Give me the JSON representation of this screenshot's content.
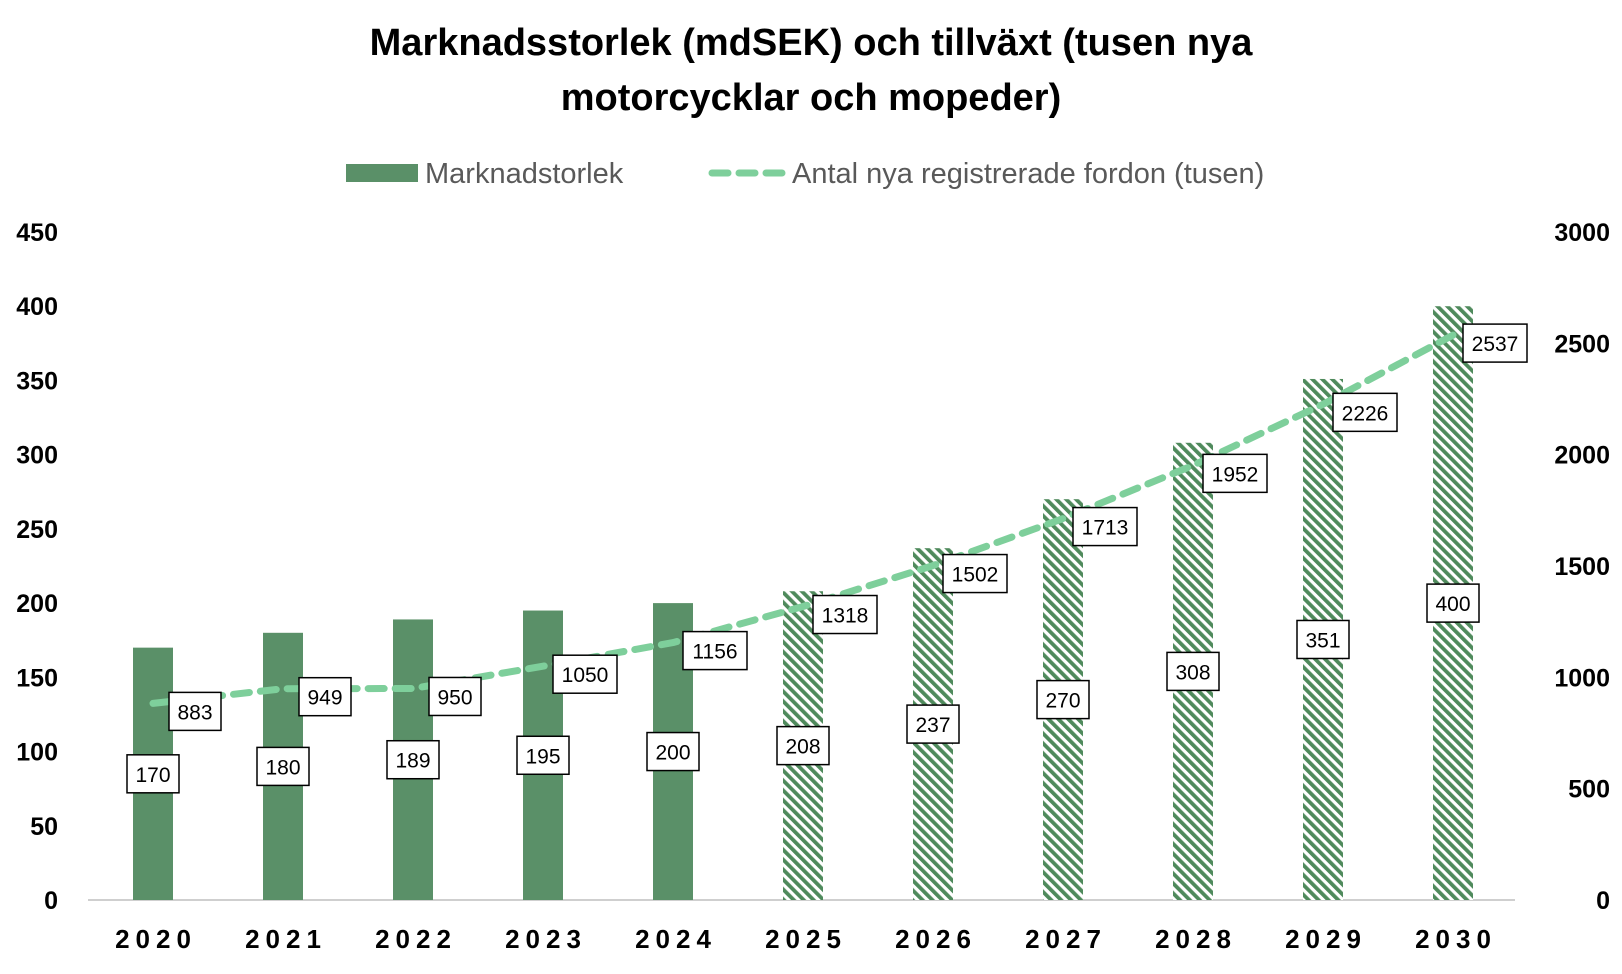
{
  "chart_data": {
    "type": "bar",
    "title_lines": [
      "Marknadsstorlek (mdSEK) och tillväxt (tusen nya",
      "motorcycklar och mopeder)"
    ],
    "categories": [
      "2020",
      "2021",
      "2022",
      "2023",
      "2024",
      "2025",
      "2026",
      "2027",
      "2028",
      "2029",
      "2030"
    ],
    "series": [
      {
        "name": "Marknadstorlek",
        "type": "bar",
        "axis": "left",
        "color": "#5a9068",
        "forecast_pattern": "diagonal-hatch",
        "forecast_from": "2025",
        "values": [
          170,
          180,
          189,
          195,
          200,
          208,
          237,
          270,
          308,
          351,
          400
        ]
      },
      {
        "name": "Antal nya registrerade fordon (tusen)",
        "type": "line",
        "style": "dashed",
        "axis": "right",
        "color": "#7ecf9b",
        "values": [
          883,
          949,
          950,
          1050,
          1156,
          1318,
          1502,
          1713,
          1952,
          2226,
          2537
        ]
      }
    ],
    "y_left": {
      "min": 0,
      "max": 450,
      "ticks": [
        0,
        50,
        100,
        150,
        200,
        250,
        300,
        350,
        400,
        450
      ]
    },
    "y_right": {
      "min": 0,
      "max": 3000,
      "ticks": [
        0,
        500,
        1000,
        1500,
        2000,
        2500,
        3000
      ]
    },
    "legend_position": "top",
    "grid": false,
    "data_labels": true
  }
}
